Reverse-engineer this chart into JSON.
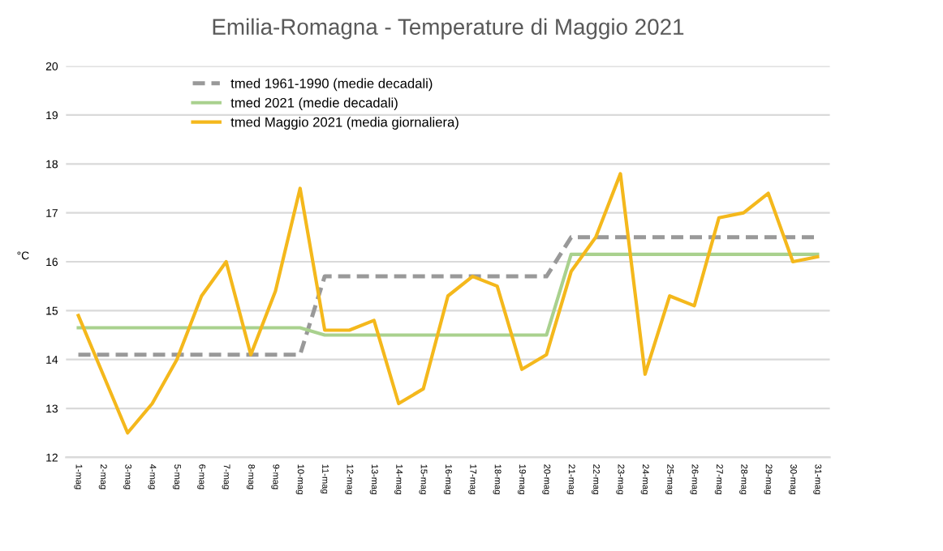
{
  "chart_data": {
    "type": "line",
    "title": "Emilia-Romagna - Temperature di Maggio 2021",
    "ylabel": "°C",
    "categories": [
      "1-mag",
      "2-mag",
      "3-mag",
      "4-mag",
      "5-mag",
      "6-mag",
      "7-mag",
      "8-mag",
      "9-mag",
      "10-mag",
      "11-mag",
      "12-mag",
      "13-mag",
      "14-mag",
      "15-mag",
      "16-mag",
      "17-mag",
      "18-mag",
      "19-mag",
      "20-mag",
      "21-mag",
      "22-mag",
      "23-mag",
      "24-mag",
      "25-mag",
      "26-mag",
      "27-mag",
      "28-mag",
      "29-mag",
      "30-mag",
      "31-mag"
    ],
    "series": [
      {
        "name": "tmed 1961-1990 (medie decadali)",
        "color": "#999999",
        "line_style": "dashed",
        "values": [
          14.1,
          14.1,
          14.1,
          14.1,
          14.1,
          14.1,
          14.1,
          14.1,
          14.1,
          14.1,
          15.7,
          15.7,
          15.7,
          15.7,
          15.7,
          15.7,
          15.7,
          15.7,
          15.7,
          15.7,
          16.5,
          16.5,
          16.5,
          16.5,
          16.5,
          16.5,
          16.5,
          16.5,
          16.5,
          16.5,
          16.5
        ]
      },
      {
        "name": "tmed 2021 (medie decadali)",
        "color": "#a9d18e",
        "line_style": "solid",
        "values": [
          14.65,
          14.65,
          14.65,
          14.65,
          14.65,
          14.65,
          14.65,
          14.65,
          14.65,
          14.65,
          14.5,
          14.5,
          14.5,
          14.5,
          14.5,
          14.5,
          14.5,
          14.5,
          14.5,
          14.5,
          16.15,
          16.15,
          16.15,
          16.15,
          16.15,
          16.15,
          16.15,
          16.15,
          16.15,
          16.15,
          16.15
        ]
      },
      {
        "name": "tmed Maggio 2021 (media giornaliera)",
        "color": "#f4b81c",
        "line_style": "solid",
        "values": [
          14.9,
          13.7,
          12.5,
          13.1,
          14.0,
          15.3,
          16.0,
          14.1,
          15.4,
          17.5,
          14.6,
          14.6,
          14.8,
          13.1,
          13.4,
          15.3,
          15.7,
          15.5,
          13.8,
          14.1,
          15.8,
          16.5,
          17.8,
          13.7,
          15.3,
          15.1,
          16.9,
          17.0,
          17.4,
          16.0,
          16.1
        ]
      }
    ],
    "ylim": [
      12,
      20
    ],
    "yticks": [
      12,
      13,
      14,
      15,
      16,
      17,
      18,
      19,
      20
    ],
    "grid": "y",
    "legend": "top left",
    "marker": "none"
  }
}
